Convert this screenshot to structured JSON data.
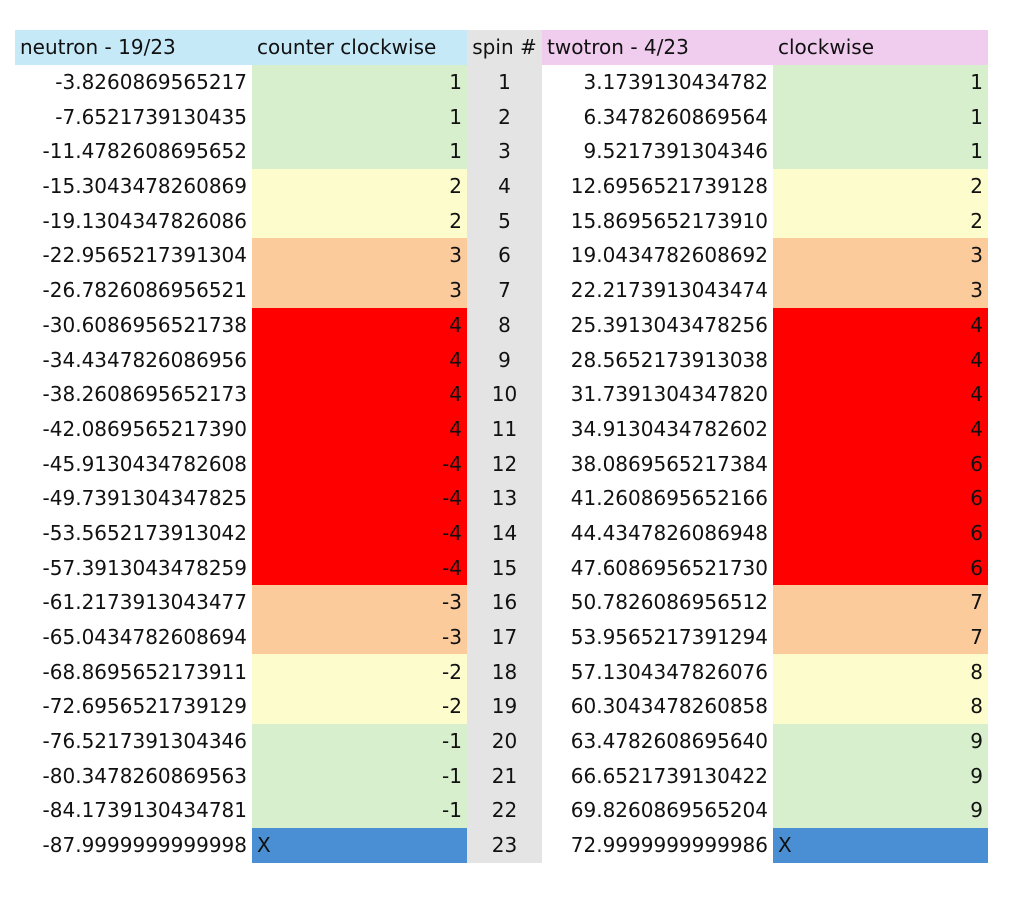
{
  "headers": {
    "neutron": "neutron - 19/23",
    "ccw": "counter clockwise",
    "spin": "spin #",
    "twotron": "twotron - 4/23",
    "cw": "clockwise"
  },
  "colors": {
    "green": "#d8efcd",
    "yellow": "#fdfccc",
    "orange": "#fccb9c",
    "red": "#ff0000",
    "blue": "#4a8fd4"
  },
  "rows": [
    {
      "neutron": "-3.8260869565217",
      "ccw": "1",
      "ccw_color": "green",
      "spin": "1",
      "twotron": "3.1739130434782",
      "cw": "1",
      "cw_color": "green"
    },
    {
      "neutron": "-7.6521739130435",
      "ccw": "1",
      "ccw_color": "green",
      "spin": "2",
      "twotron": "6.3478260869564",
      "cw": "1",
      "cw_color": "green"
    },
    {
      "neutron": "-11.4782608695652",
      "ccw": "1",
      "ccw_color": "green",
      "spin": "3",
      "twotron": "9.5217391304346",
      "cw": "1",
      "cw_color": "green"
    },
    {
      "neutron": "-15.3043478260869",
      "ccw": "2",
      "ccw_color": "yellow",
      "spin": "4",
      "twotron": "12.6956521739128",
      "cw": "2",
      "cw_color": "yellow"
    },
    {
      "neutron": "-19.1304347826086",
      "ccw": "2",
      "ccw_color": "yellow",
      "spin": "5",
      "twotron": "15.8695652173910",
      "cw": "2",
      "cw_color": "yellow"
    },
    {
      "neutron": "-22.9565217391304",
      "ccw": "3",
      "ccw_color": "orange",
      "spin": "6",
      "twotron": "19.0434782608692",
      "cw": "3",
      "cw_color": "orange"
    },
    {
      "neutron": "-26.7826086956521",
      "ccw": "3",
      "ccw_color": "orange",
      "spin": "7",
      "twotron": "22.2173913043474",
      "cw": "3",
      "cw_color": "orange"
    },
    {
      "neutron": "-30.6086956521738",
      "ccw": "4",
      "ccw_color": "red",
      "spin": "8",
      "twotron": "25.3913043478256",
      "cw": "4",
      "cw_color": "red"
    },
    {
      "neutron": "-34.4347826086956",
      "ccw": "4",
      "ccw_color": "red",
      "spin": "9",
      "twotron": "28.5652173913038",
      "cw": "4",
      "cw_color": "red"
    },
    {
      "neutron": "-38.2608695652173",
      "ccw": "4",
      "ccw_color": "red",
      "spin": "10",
      "twotron": "31.7391304347820",
      "cw": "4",
      "cw_color": "red"
    },
    {
      "neutron": "-42.0869565217390",
      "ccw": "4",
      "ccw_color": "red",
      "spin": "11",
      "twotron": "34.9130434782602",
      "cw": "4",
      "cw_color": "red"
    },
    {
      "neutron": "-45.9130434782608",
      "ccw": "-4",
      "ccw_color": "red",
      "spin": "12",
      "twotron": "38.0869565217384",
      "cw": "6",
      "cw_color": "red"
    },
    {
      "neutron": "-49.7391304347825",
      "ccw": "-4",
      "ccw_color": "red",
      "spin": "13",
      "twotron": "41.2608695652166",
      "cw": "6",
      "cw_color": "red"
    },
    {
      "neutron": "-53.5652173913042",
      "ccw": "-4",
      "ccw_color": "red",
      "spin": "14",
      "twotron": "44.4347826086948",
      "cw": "6",
      "cw_color": "red"
    },
    {
      "neutron": "-57.3913043478259",
      "ccw": "-4",
      "ccw_color": "red",
      "spin": "15",
      "twotron": "47.6086956521730",
      "cw": "6",
      "cw_color": "red"
    },
    {
      "neutron": "-61.2173913043477",
      "ccw": "-3",
      "ccw_color": "orange",
      "spin": "16",
      "twotron": "50.7826086956512",
      "cw": "7",
      "cw_color": "orange"
    },
    {
      "neutron": "-65.0434782608694",
      "ccw": "-3",
      "ccw_color": "orange",
      "spin": "17",
      "twotron": "53.9565217391294",
      "cw": "7",
      "cw_color": "orange"
    },
    {
      "neutron": "-68.8695652173911",
      "ccw": "-2",
      "ccw_color": "yellow",
      "spin": "18",
      "twotron": "57.1304347826076",
      "cw": "8",
      "cw_color": "yellow"
    },
    {
      "neutron": "-72.6956521739129",
      "ccw": "-2",
      "ccw_color": "yellow",
      "spin": "19",
      "twotron": "60.3043478260858",
      "cw": "8",
      "cw_color": "yellow"
    },
    {
      "neutron": "-76.5217391304346",
      "ccw": "-1",
      "ccw_color": "green",
      "spin": "20",
      "twotron": "63.4782608695640",
      "cw": "9",
      "cw_color": "green"
    },
    {
      "neutron": "-80.3478260869563",
      "ccw": "-1",
      "ccw_color": "green",
      "spin": "21",
      "twotron": "66.6521739130422",
      "cw": "9",
      "cw_color": "green"
    },
    {
      "neutron": "-84.1739130434781",
      "ccw": "-1",
      "ccw_color": "green",
      "spin": "22",
      "twotron": "69.8260869565204",
      "cw": "9",
      "cw_color": "green"
    },
    {
      "neutron": "-87.9999999999998",
      "ccw": "X",
      "ccw_color": "blue",
      "spin": "23",
      "twotron": "72.9999999999986",
      "cw": "X",
      "cw_color": "blue"
    }
  ]
}
